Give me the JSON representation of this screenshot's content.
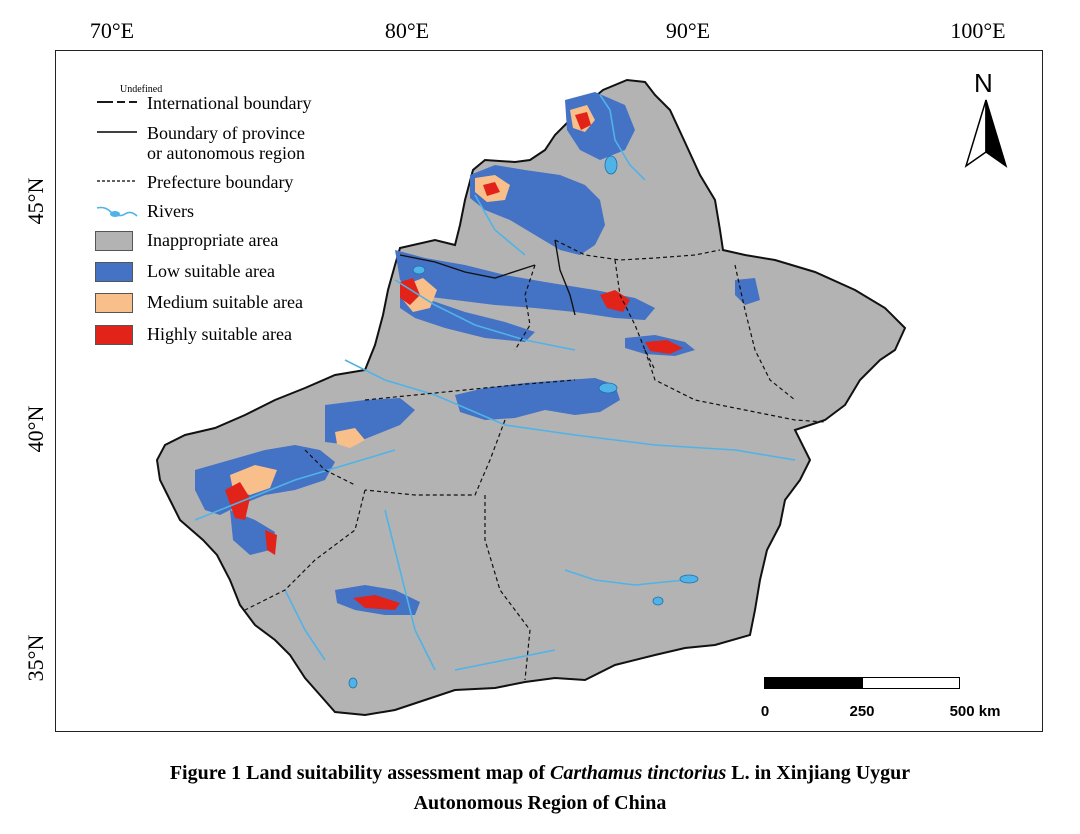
{
  "axes": {
    "longitude_labels": [
      "70°E",
      "80°E",
      "90°E",
      "100°E"
    ],
    "latitude_labels": [
      "45°N",
      "40°N",
      "35°N"
    ]
  },
  "legend": {
    "undefined_label": "Undefined",
    "items": [
      {
        "key": "international",
        "label": "International boundary"
      },
      {
        "key": "province",
        "label": "Boundary of province",
        "label2": "or autonomous region"
      },
      {
        "key": "prefecture",
        "label": "Prefecture boundary"
      },
      {
        "key": "rivers",
        "label": "Rivers"
      },
      {
        "key": "inappropriate",
        "label": "Inappropriate area",
        "color": "#b3b3b3"
      },
      {
        "key": "low",
        "label": "Low suitable area",
        "color": "#4472c4"
      },
      {
        "key": "medium",
        "label": "Medium suitable area",
        "color": "#f8bf8b"
      },
      {
        "key": "high",
        "label": "Highly suitable area",
        "color": "#e2231a"
      }
    ]
  },
  "north_arrow": {
    "label": "N"
  },
  "scale_bar": {
    "ticks": [
      "0",
      "250",
      "500 km"
    ]
  },
  "colors": {
    "river": "#4fb3e8",
    "boundary": "#000000"
  },
  "caption": {
    "prefix": "Figure 1  Land suitability assessment map of ",
    "species": "Carthamus tinctorius",
    "suffix": " L. in Xinjiang Uygur",
    "line2": "Autonomous Region of China"
  }
}
